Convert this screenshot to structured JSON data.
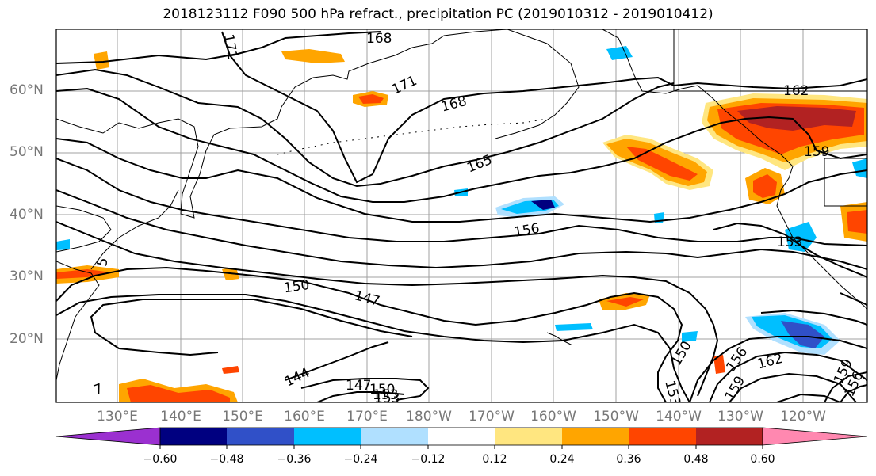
{
  "title": "2018123112 F090 500 hPa refract., precipitation PC (2019010312 - 2019010412)",
  "lat_labels": [
    "60°N",
    "50°N",
    "40°N",
    "30°N",
    "20°N"
  ],
  "lon_labels": [
    "130°E",
    "140°E",
    "150°E",
    "160°E",
    "170°E",
    "180°W",
    "170°W",
    "160°W",
    "150°W",
    "140°W",
    "130°W",
    "120°W"
  ],
  "contour_labels": [
    "168",
    "171",
    "171",
    "168",
    "165",
    "162",
    "159",
    "156",
    "153",
    "150",
    "147",
    "144",
    "147",
    "150",
    "153",
    "150",
    "156",
    "159",
    "162",
    "159",
    "156",
    "153",
    "5",
    "7",
    "153"
  ],
  "colorbar": {
    "tick_labels": [
      "−0.60",
      "−0.48",
      "−0.36",
      "−0.24",
      "−0.12",
      "0.12",
      "0.24",
      "0.36",
      "0.48",
      "0.60"
    ],
    "colors": [
      "#9b30d0",
      "#000080",
      "#3050c8",
      "#00bfff",
      "#b0e0ff",
      "#ffffff",
      "#ffe680",
      "#ffa500",
      "#ff4500",
      "#b22222",
      "#ff88b0"
    ]
  }
}
